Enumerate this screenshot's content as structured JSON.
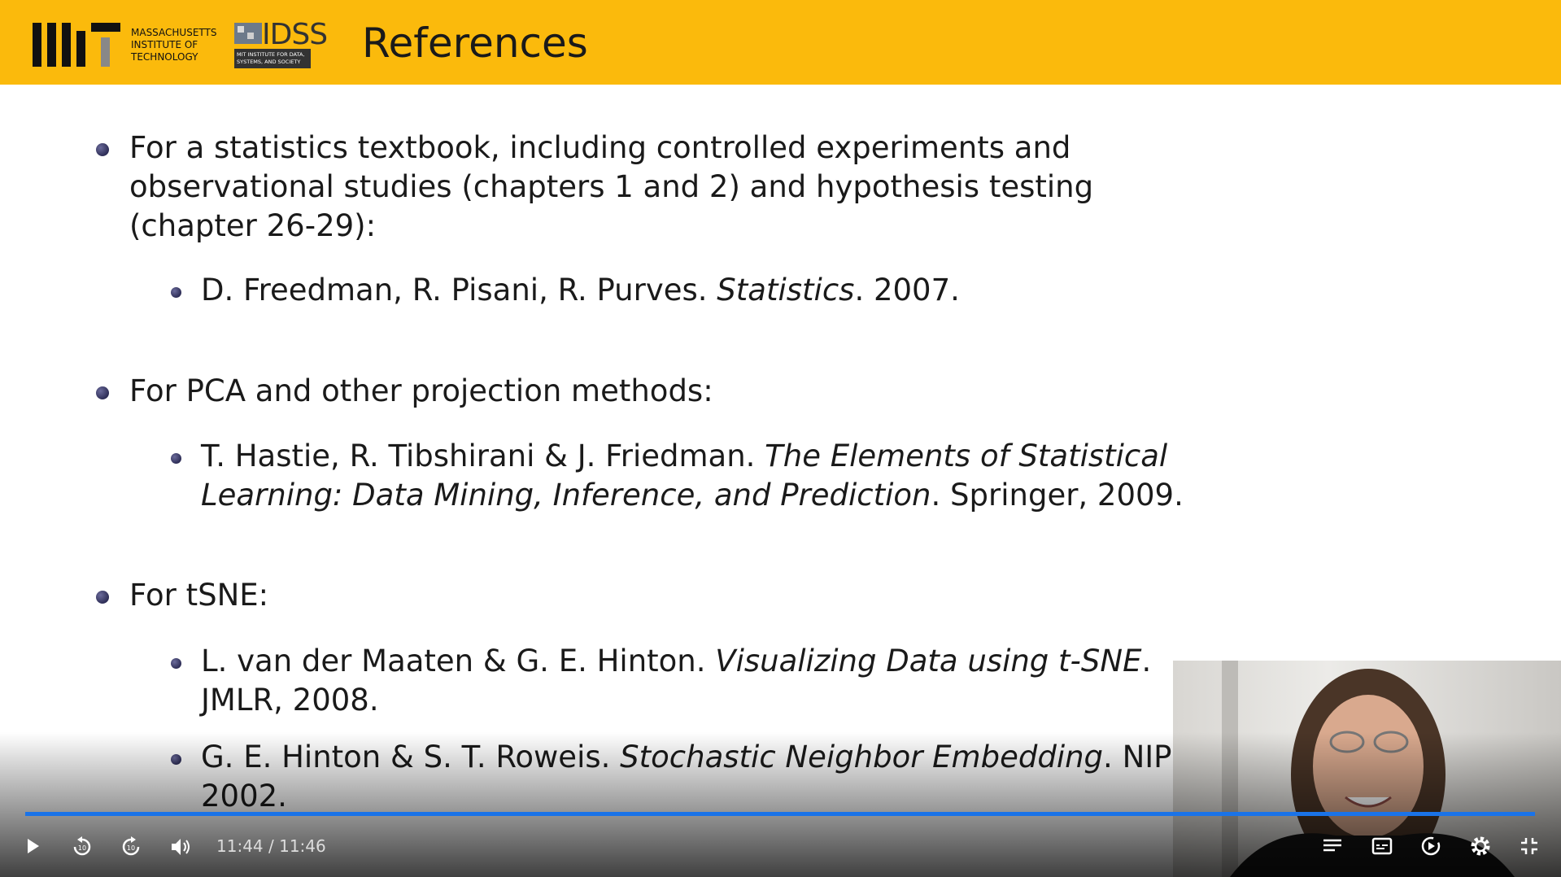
{
  "header": {
    "title": "References",
    "mit_logo_text": [
      "MASSACHUSETTS",
      "INSTITUTE OF",
      "TECHNOLOGY"
    ],
    "idss_logo": "IDSS",
    "idss_subtext": [
      "MIT INSTITUTE FOR DATA,",
      "SYSTEMS, AND SOCIETY"
    ]
  },
  "items": [
    {
      "lines": [
        [
          {
            "text": "For a statistics textbook, including controlled experiments and"
          }
        ],
        [
          {
            "text": "observational studies (chapters 1 and 2) and hypothesis testing"
          }
        ],
        [
          {
            "text": "(chapter 26-29):"
          }
        ]
      ],
      "refs": [
        {
          "lines": [
            [
              {
                "text": "D. Freedman, R. Pisani, R. Purves. "
              },
              {
                "text": "Statistics",
                "italic": true
              },
              {
                "text": ". 2007."
              }
            ]
          ]
        }
      ]
    },
    {
      "lines": [
        [
          {
            "text": "For PCA and other projection methods:"
          }
        ]
      ],
      "refs": [
        {
          "lines": [
            [
              {
                "text": "T. Hastie, R. Tibshirani & J. Friedman. "
              },
              {
                "text": "The Elements of Statistical",
                "italic": true
              }
            ],
            [
              {
                "text": "Learning: Data Mining, Inference, and Prediction",
                "italic": true
              },
              {
                "text": ". Springer, 2009."
              }
            ]
          ]
        }
      ]
    },
    {
      "lines": [
        [
          {
            "text": "For tSNE:"
          }
        ]
      ],
      "refs": [
        {
          "lines": [
            [
              {
                "text": "L. van der Maaten & G. E. Hinton. "
              },
              {
                "text": "Visualizing Data using t-SNE",
                "italic": true
              },
              {
                "text": "."
              }
            ],
            [
              {
                "text": "JMLR, 2008."
              }
            ]
          ]
        },
        {
          "lines": [
            [
              {
                "text": "G. E. Hinton & S. T. Roweis. "
              },
              {
                "text": "Stochastic Neighbor Embedding",
                "italic": true
              },
              {
                "text": ". NIPS,"
              }
            ],
            [
              {
                "text": "2002."
              }
            ]
          ]
        }
      ]
    }
  ],
  "player": {
    "time": "11:44 / 11:46"
  }
}
